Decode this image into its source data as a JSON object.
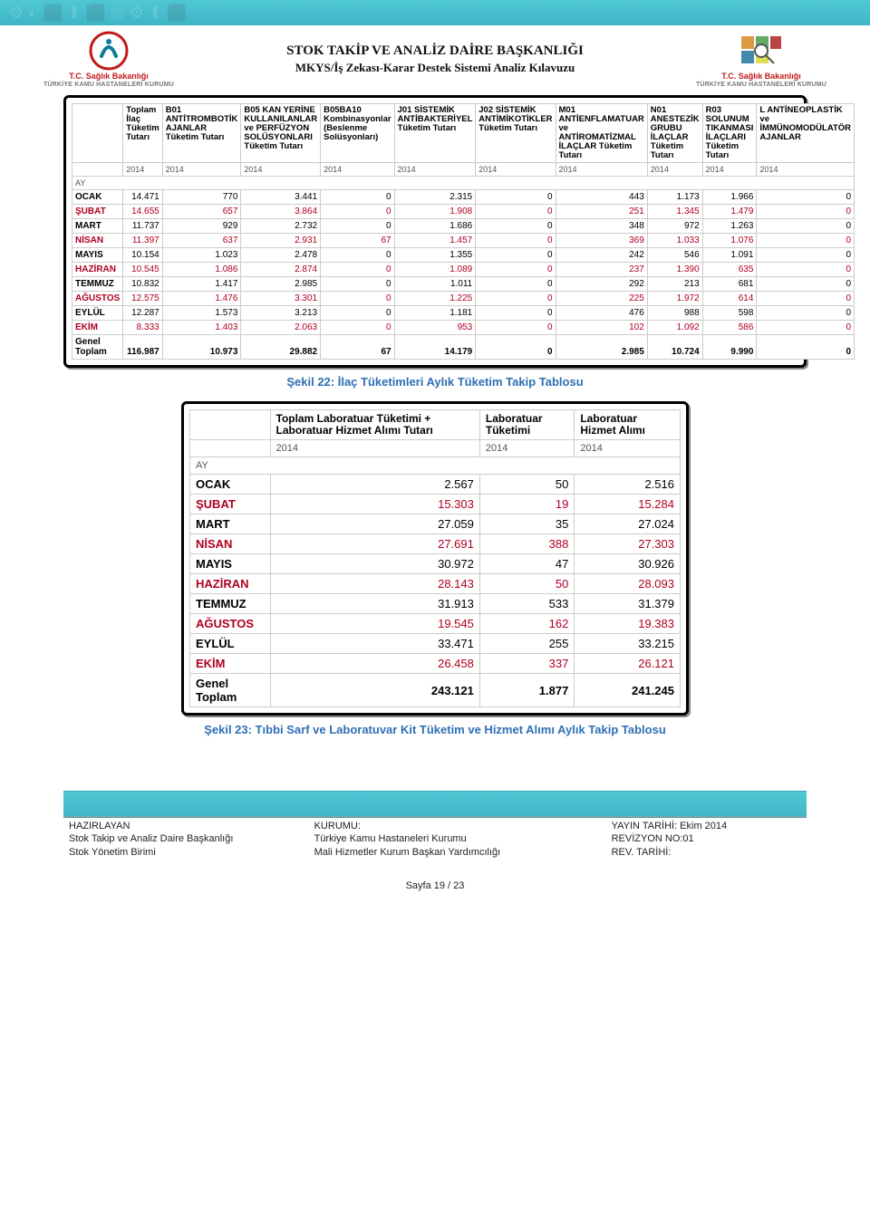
{
  "banner_color": "#4fc8d6",
  "header": {
    "title": "STOK TAKİP VE ANALİZ DAİRE BAŞKANLIĞI",
    "subtitle": "MKYS/İş Zekası-Karar Destek Sistemi Analiz Kılavuzu",
    "logo_left_line1": "T.C. Sağlık Bakanlığı",
    "logo_left_line2": "TÜRKİYE KAMU HASTANELERİ KURUMU",
    "logo_right_line1": "T.C. Sağlık Bakanlığı",
    "logo_right_line2": "TÜRKİYE KAMU HASTANELERİ KURUMU"
  },
  "table1": {
    "columns": [
      "",
      "Toplam İlaç Tüketim Tutarı",
      "B01 ANTİTROMBOTİK AJANLAR Tüketim Tutarı",
      "B05 KAN YERİNE KULLANILANLAR ve PERFÜZYON SOLÜSYONLARI Tüketim Tutarı",
      "B05BA10 Kombinasyonlar (Beslenme Solüsyonları)",
      "J01 SİSTEMİK ANTİBAKTERİYEL Tüketim Tutarı",
      "J02 SİSTEMİK ANTİMİKOTİKLER Tüketim Tutarı",
      "M01 ANTİENFLAMATUAR ve ANTİROMATİZMAL İLAÇLAR Tüketim Tutarı",
      "N01 ANESTEZİK GRUBU İLAÇLAR Tüketim Tutarı",
      "R03 SOLUNUM TIKANMASI İLAÇLARI Tüketim Tutarı",
      "L ANTİNEOPLASTİK ve İMMÜNOMODÜLATÖR AJANLAR"
    ],
    "year": "2014",
    "ay_label": "AY",
    "rows": [
      {
        "m": "OCAK",
        "red": false,
        "v": [
          "14.471",
          "770",
          "3.441",
          "0",
          "2.315",
          "0",
          "443",
          "1.173",
          "1.966",
          "0"
        ]
      },
      {
        "m": "ŞUBAT",
        "red": true,
        "v": [
          "14.655",
          "657",
          "3.864",
          "0",
          "1.908",
          "0",
          "251",
          "1.345",
          "1.479",
          "0"
        ]
      },
      {
        "m": "MART",
        "red": false,
        "v": [
          "11.737",
          "929",
          "2.732",
          "0",
          "1.686",
          "0",
          "348",
          "972",
          "1.263",
          "0"
        ]
      },
      {
        "m": "NİSAN",
        "red": true,
        "v": [
          "11.397",
          "637",
          "2.931",
          "67",
          "1.457",
          "0",
          "369",
          "1.033",
          "1.076",
          "0"
        ]
      },
      {
        "m": "MAYIS",
        "red": false,
        "v": [
          "10.154",
          "1.023",
          "2.478",
          "0",
          "1.355",
          "0",
          "242",
          "546",
          "1.091",
          "0"
        ]
      },
      {
        "m": "HAZİRAN",
        "red": true,
        "v": [
          "10.545",
          "1.086",
          "2.874",
          "0",
          "1.089",
          "0",
          "237",
          "1.390",
          "635",
          "0"
        ]
      },
      {
        "m": "TEMMUZ",
        "red": false,
        "v": [
          "10.832",
          "1.417",
          "2.985",
          "0",
          "1.011",
          "0",
          "292",
          "213",
          "681",
          "0"
        ]
      },
      {
        "m": "AĞUSTOS",
        "red": true,
        "v": [
          "12.575",
          "1.476",
          "3.301",
          "0",
          "1.225",
          "0",
          "225",
          "1.972",
          "614",
          "0"
        ]
      },
      {
        "m": "EYLÜL",
        "red": false,
        "v": [
          "12.287",
          "1.573",
          "3.213",
          "0",
          "1.181",
          "0",
          "476",
          "988",
          "598",
          "0"
        ]
      },
      {
        "m": "EKİM",
        "red": true,
        "v": [
          "8.333",
          "1.403",
          "2.063",
          "0",
          "953",
          "0",
          "102",
          "1.092",
          "586",
          "0"
        ]
      }
    ],
    "total_label": "Genel Toplam",
    "total": [
      "116.987",
      "10.973",
      "29.882",
      "67",
      "14.179",
      "0",
      "2.985",
      "10.724",
      "9.990",
      "0"
    ]
  },
  "caption1": "Şekil 22: İlaç Tüketimleri Aylık Tüketim Takip Tablosu",
  "table2": {
    "columns": [
      "",
      "Toplam Laboratuar Tüketimi + Laboratuar Hizmet Alımı Tutarı",
      "Laboratuar Tüketimi",
      "Laboratuar Hizmet Alımı"
    ],
    "year": "2014",
    "ay_label": "AY",
    "rows": [
      {
        "m": "OCAK",
        "red": false,
        "v": [
          "2.567",
          "50",
          "2.516"
        ]
      },
      {
        "m": "ŞUBAT",
        "red": true,
        "v": [
          "15.303",
          "19",
          "15.284"
        ]
      },
      {
        "m": "MART",
        "red": false,
        "v": [
          "27.059",
          "35",
          "27.024"
        ]
      },
      {
        "m": "NİSAN",
        "red": true,
        "v": [
          "27.691",
          "388",
          "27.303"
        ]
      },
      {
        "m": "MAYIS",
        "red": false,
        "v": [
          "30.972",
          "47",
          "30.926"
        ]
      },
      {
        "m": "HAZİRAN",
        "red": true,
        "v": [
          "28.143",
          "50",
          "28.093"
        ]
      },
      {
        "m": "TEMMUZ",
        "red": false,
        "v": [
          "31.913",
          "533",
          "31.379"
        ]
      },
      {
        "m": "AĞUSTOS",
        "red": true,
        "v": [
          "19.545",
          "162",
          "19.383"
        ]
      },
      {
        "m": "EYLÜL",
        "red": false,
        "v": [
          "33.471",
          "255",
          "33.215"
        ]
      },
      {
        "m": "EKİM",
        "red": true,
        "v": [
          "26.458",
          "337",
          "26.121"
        ]
      }
    ],
    "total_label": "Genel Toplam",
    "total": [
      "243.121",
      "1.877",
      "241.245"
    ]
  },
  "caption2": "Şekil 23: Tıbbi Sarf ve Laboratuvar Kit Tüketim ve Hizmet Alımı Aylık Takip Tablosu",
  "footer": {
    "col1_l1": "HAZIRLAYAN",
    "col1_l2": "Stok Takip ve Analiz Daire Başkanlığı",
    "col1_l3": "Stok Yönetim Birimi",
    "col2_l1": "KURUMU:",
    "col2_l2": "Türkiye Kamu Hastaneleri Kurumu",
    "col2_l3": "Mali Hizmetler Kurum Başkan Yardımcılığı",
    "col3_l1": "YAYIN TARİHİ: Ekim 2014",
    "col3_l2": "REVİZYON NO:01",
    "col3_l3": "REV. TARİHİ:"
  },
  "page_number": "Sayfa 19 / 23"
}
